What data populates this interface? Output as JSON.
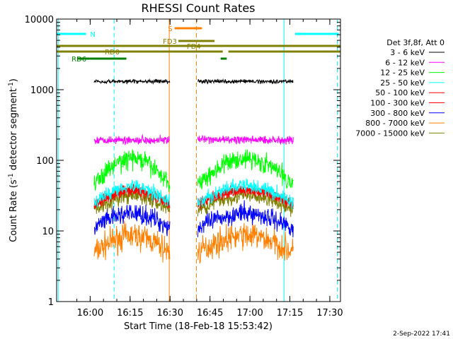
{
  "chart_data": {
    "type": "line",
    "title": "RHESSI Count Rates",
    "xlabel": "Start Time (18-Feb-18 15:53:42)",
    "ylabel_main": "Count Rate (s",
    "ylabel_sup1": "-1",
    "ylabel_mid": " detector segment",
    "ylabel_sup2": "-1",
    "ylabel_end": ")",
    "y_scale": "log",
    "ylim": [
      1,
      10000
    ],
    "xlim_minutes": [
      -6.3,
      100.3
    ],
    "x_ticks": [
      {
        "minute": 6.3,
        "label": "16:00"
      },
      {
        "minute": 21.3,
        "label": "16:15"
      },
      {
        "minute": 36.3,
        "label": "16:30"
      },
      {
        "minute": 51.3,
        "label": "16:45"
      },
      {
        "minute": 66.3,
        "label": "17:00"
      },
      {
        "minute": 81.3,
        "label": "17:15"
      },
      {
        "minute": 96.3,
        "label": "17:30"
      }
    ],
    "y_ticks": [
      {
        "value": 1,
        "label": "1"
      },
      {
        "value": 10,
        "label": "10"
      },
      {
        "value": 100,
        "label": "100"
      },
      {
        "value": 1000,
        "label": "1000"
      },
      {
        "value": 10000,
        "label": "10000"
      }
    ],
    "legend_header": "Det 3f,8f, Att 0",
    "series": [
      {
        "name": "3 - 6 keV",
        "color": "#000000",
        "base": 1310,
        "amp": 0.03,
        "shape": "flat",
        "noise": 0.025
      },
      {
        "name": "6 - 12 keV",
        "color": "#ff00ff",
        "base": 195,
        "amp": 0.04,
        "shape": "flat",
        "noise": 0.05
      },
      {
        "name": "12 - 25 keV",
        "color": "#00ff00",
        "base": 70,
        "amp": 0.45,
        "shape": "hump",
        "noise": 0.12
      },
      {
        "name": "25 - 50 keV",
        "color": "#00ffff",
        "base": 33,
        "amp": 0.3,
        "shape": "hump",
        "noise": 0.09
      },
      {
        "name": "50 - 100 keV",
        "color": "#ff0000",
        "base": 30,
        "amp": 0.25,
        "shape": "hump",
        "noise": 0.07
      },
      {
        "name": "100 - 300 keV",
        "color": "#ff0000",
        "base": 30,
        "amp": 0.25,
        "shape": "hump",
        "noise": 0.06
      },
      {
        "name": "300 - 800 keV",
        "color": "#0000ff",
        "base": 14,
        "amp": 0.25,
        "shape": "hump",
        "noise": 0.12
      },
      {
        "name": "800 - 7000 keV",
        "color": "#ff8000",
        "base": 6.5,
        "amp": 0.3,
        "shape": "hump",
        "noise": 0.16
      },
      {
        "name": "7000 - 15000 keV",
        "color": "#808000",
        "base": 25,
        "amp": 0.25,
        "shape": "hump",
        "noise": 0.1
      }
    ],
    "data_segments": [
      {
        "start_minute": 7.8,
        "end_minute": 36.2
      },
      {
        "start_minute": 46.7,
        "end_minute": 82.6
      }
    ],
    "intervals": [
      {
        "label": "N",
        "color": "#00ffff",
        "bars": [
          [
            -6.3,
            4.7
          ],
          [
            83.3,
            99.7
          ]
        ],
        "row": 0,
        "label_minute": 6.3
      },
      {
        "label": "S",
        "color": "#ff8000",
        "bars": [
          [
            38.0,
            48.3
          ]
        ],
        "row": -1,
        "label_minute": 35.5
      },
      {
        "label": "FD3",
        "color": "#808000",
        "bars": [
          [
            39.4,
            53.0
          ]
        ],
        "row": 1,
        "label_minute": 33.6
      },
      {
        "label": "FD4",
        "color": "#808000",
        "bars": [
          [
            -6.3,
            100.3
          ]
        ],
        "row": 2,
        "label_minute": 42.6
      },
      {
        "label": "RD0",
        "color": "#808000",
        "bars": [
          [
            -6.3,
            56.1
          ],
          [
            58.2,
            100.3
          ]
        ],
        "row": 3,
        "label_minute": 11.8
      },
      {
        "label": "RD6",
        "color": "#008000",
        "bars": [
          [
            1.6,
            19.9
          ],
          [
            55.3,
            57.6
          ]
        ],
        "row": 4,
        "label_minute": -0.7
      }
    ],
    "vertical_lines": [
      {
        "minute": -5.7,
        "color": "#00ffff",
        "style": "solid"
      },
      {
        "minute": 15.3,
        "color": "#00ffff",
        "style": "dashed"
      },
      {
        "minute": 36.0,
        "color": "#ff8000",
        "style": "solid"
      },
      {
        "minute": 46.2,
        "color": "#ff8000",
        "style": "dashed"
      },
      {
        "minute": 79.1,
        "color": "#00ffff",
        "style": "solid"
      },
      {
        "minute": 99.1,
        "color": "#00ffff",
        "style": "dashed"
      }
    ]
  },
  "footer_date": "2-Sep-2022 17:41"
}
